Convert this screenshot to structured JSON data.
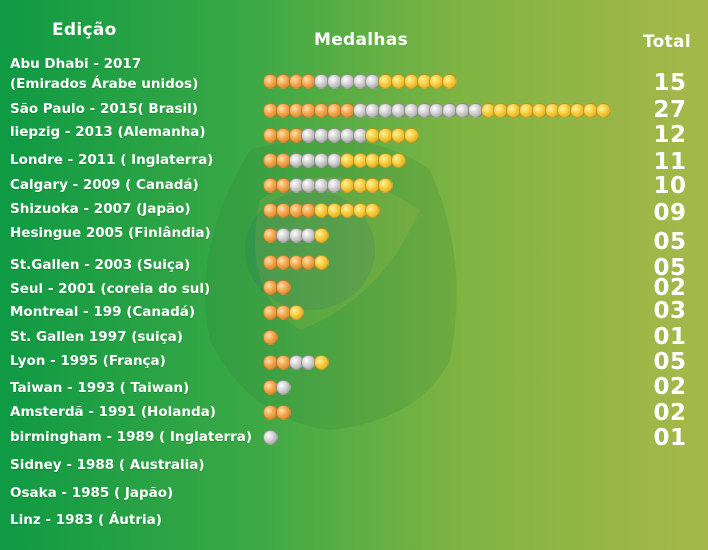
{
  "headers": {
    "edition": "Edição",
    "medals": "Medalhas",
    "total": "Total"
  },
  "colors": {
    "gold": "#f5cc3a",
    "silver": "#cfcfcf",
    "bronze": "#f2a64a",
    "background": "#3aa845"
  },
  "chart_data": {
    "type": "bar",
    "title": "",
    "xlabel": "Medalhas",
    "ylabel": "Edição",
    "categories": [
      "Abu Dhabi - 2017 (Emirados Árabe unidos)",
      "São Paulo - 2015( Brasil)",
      "liepzig - 2013 (Alemanha)",
      "Londre - 2011 ( Inglaterra)",
      "Calgary - 2009 ( Canadá)",
      "Shizuoka - 2007 (Japão)",
      "Hesingue 2005 (Finlândia)",
      "St.Gallen - 2003 (Suiça)",
      "Seul - 2001 (coreia do sul)",
      "Montreal - 199 (Canadá)",
      "St. Gallen 1997 (suiça)",
      "Lyon - 1995 (França)",
      "Taiwan - 1993 ( Taiwan)",
      "Amsterdã - 1991 (Holanda)",
      "birmingham - 1989 ( Inglaterra)",
      "Sidney - 1988 ( Australia)",
      "Osaka - 1985 ( Japão)",
      "Linz - 1983 ( Áutria)"
    ],
    "series": [
      {
        "key": "bronze",
        "values": [
          4,
          7,
          3,
          2,
          2,
          4,
          1,
          4,
          2,
          2,
          1,
          2,
          1,
          2,
          0,
          0,
          0,
          0
        ]
      },
      {
        "key": "silver",
        "values": [
          5,
          10,
          5,
          4,
          4,
          0,
          3,
          0,
          0,
          0,
          0,
          2,
          1,
          0,
          1,
          0,
          0,
          0
        ]
      },
      {
        "key": "gold",
        "values": [
          6,
          10,
          4,
          5,
          4,
          5,
          1,
          1,
          0,
          1,
          0,
          1,
          0,
          0,
          0,
          0,
          0,
          0
        ]
      }
    ],
    "totals": [
      "15",
      "27",
      "12",
      "11",
      "10",
      "09",
      "05",
      "05",
      "02",
      "03",
      "01",
      "05",
      "02",
      "02",
      "01",
      "",
      "",
      ""
    ]
  },
  "rows": [
    {
      "label_lines": [
        "Abu Dhabi - 2017",
        "(Emirados Árabe unidos)"
      ]
    },
    {
      "label_lines": [
        "São Paulo - 2015( Brasil)"
      ]
    },
    {
      "label_lines": [
        "liepzig - 2013 (Alemanha)"
      ]
    },
    {
      "label_lines": [
        "Londre - 2011 ( Inglaterra)"
      ]
    },
    {
      "label_lines": [
        "Calgary - 2009 ( Canadá)"
      ]
    },
    {
      "label_lines": [
        "Shizuoka - 2007 (Japão)"
      ]
    },
    {
      "label_lines": [
        "Hesingue 2005 (Finlândia)"
      ]
    },
    {
      "label_lines": [
        "St.Gallen - 2003 (Suiça)"
      ]
    },
    {
      "label_lines": [
        "Seul - 2001 (coreia do sul)"
      ]
    },
    {
      "label_lines": [
        "Montreal - 199 (Canadá)"
      ]
    },
    {
      "label_lines": [
        "St. Gallen 1997 (suiça)"
      ]
    },
    {
      "label_lines": [
        "Lyon - 1995 (França)"
      ]
    },
    {
      "label_lines": [
        "Taiwan - 1993 ( Taiwan)"
      ]
    },
    {
      "label_lines": [
        "Amsterdã - 1991 (Holanda)"
      ]
    },
    {
      "label_lines": [
        "birmingham - 1989 ( Inglaterra)"
      ]
    },
    {
      "label_lines": [
        "Sidney - 1988 ( Australia)"
      ]
    },
    {
      "label_lines": [
        "Osaka - 1985 ( Japão)"
      ]
    },
    {
      "label_lines": [
        "Linz - 1983 ( Áutria)"
      ]
    }
  ]
}
